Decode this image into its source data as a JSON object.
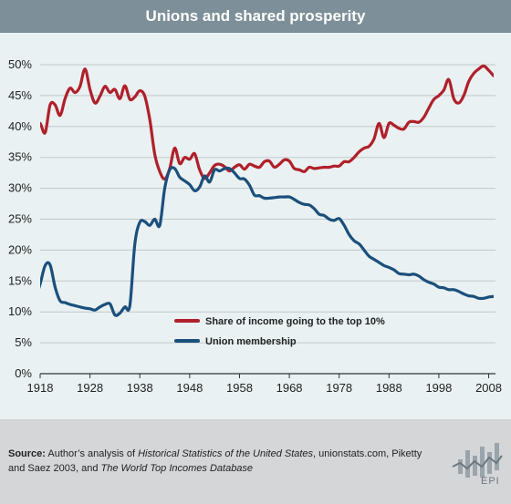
{
  "header": {
    "title": "Unions and shared prosperity"
  },
  "footer": {
    "source_label": "Source:",
    "source_parts": [
      "Author’s analysis of ",
      "Historical Statistics of the United States",
      ", unionstats.com, Piketty and Saez 2003, and ",
      "The World Top Incomes Database"
    ],
    "logo_text": "EPI"
  },
  "colors": {
    "income": "#b0202a",
    "union": "#1b4f7c",
    "background": "#e9f1f2",
    "header": "#7d8f99"
  },
  "chart_data": {
    "type": "line",
    "title": "Unions and shared prosperity",
    "xlabel": "",
    "ylabel": "",
    "xlim": [
      1918,
      2009
    ],
    "ylim": [
      0,
      50
    ],
    "xticks": [
      1918,
      1928,
      1938,
      1948,
      1958,
      1968,
      1978,
      1988,
      1998,
      2008
    ],
    "yticks": [
      0,
      5,
      10,
      15,
      20,
      25,
      30,
      35,
      40,
      45,
      50
    ],
    "ytick_labels": [
      "0%",
      "5%",
      "10%",
      "15%",
      "20%",
      "25%",
      "30%",
      "35%",
      "40%",
      "45%",
      "50%"
    ],
    "grid": "horizontal",
    "legend_position": "lower-center",
    "series": [
      {
        "name": "Share of income going to the top 10%",
        "color": "#b0202a",
        "x": [
          1917,
          1918,
          1919,
          1920,
          1921,
          1922,
          1923,
          1924,
          1925,
          1926,
          1927,
          1928,
          1929,
          1930,
          1931,
          1932,
          1933,
          1934,
          1935,
          1936,
          1937,
          1938,
          1939,
          1940,
          1941,
          1942,
          1943,
          1944,
          1945,
          1946,
          1947,
          1948,
          1949,
          1950,
          1951,
          1952,
          1953,
          1954,
          1955,
          1956,
          1957,
          1958,
          1959,
          1960,
          1961,
          1962,
          1963,
          1964,
          1965,
          1966,
          1967,
          1968,
          1969,
          1970,
          1971,
          1972,
          1973,
          1974,
          1975,
          1976,
          1977,
          1978,
          1979,
          1980,
          1981,
          1982,
          1983,
          1984,
          1985,
          1986,
          1987,
          1988,
          1989,
          1990,
          1991,
          1992,
          1993,
          1994,
          1995,
          1996,
          1997,
          1998,
          1999,
          2000,
          2001,
          2002,
          2003,
          2004,
          2005,
          2006,
          2007,
          2008,
          2009
        ],
        "values": [
          40.3,
          40.5,
          39.0,
          43.5,
          43.5,
          41.8,
          44.5,
          46.2,
          45.5,
          46.5,
          49.3,
          46.0,
          43.8,
          44.9,
          46.5,
          45.5,
          46.0,
          44.5,
          46.6,
          44.4,
          44.8,
          45.8,
          44.9,
          41.1,
          35.5,
          32.7,
          31.5,
          33.2,
          36.5,
          34.0,
          35.0,
          34.7,
          35.6,
          33.0,
          31.6,
          32.5,
          33.7,
          33.9,
          33.5,
          32.8,
          33.4,
          33.8,
          33.1,
          33.9,
          33.6,
          33.4,
          34.3,
          34.4,
          33.4,
          33.9,
          34.6,
          34.4,
          33.2,
          33.0,
          32.7,
          33.4,
          33.2,
          33.3,
          33.4,
          33.4,
          33.6,
          33.6,
          34.3,
          34.3,
          35.0,
          35.9,
          36.5,
          36.8,
          38.0,
          40.5,
          38.2,
          40.5,
          40.2,
          39.7,
          39.6,
          40.7,
          40.8,
          40.7,
          41.5,
          43.0,
          44.4,
          45.0,
          45.9,
          47.6,
          44.5,
          43.8,
          45.0,
          47.3,
          48.6,
          49.3,
          49.8,
          49.1,
          48.2
        ]
      },
      {
        "name": "Union membership",
        "color": "#1b4f7c",
        "x": [
          1917,
          1918,
          1919,
          1920,
          1921,
          1922,
          1923,
          1924,
          1925,
          1926,
          1927,
          1928,
          1929,
          1930,
          1931,
          1932,
          1933,
          1934,
          1935,
          1936,
          1937,
          1938,
          1939,
          1940,
          1941,
          1942,
          1943,
          1944,
          1945,
          1946,
          1947,
          1948,
          1949,
          1950,
          1951,
          1952,
          1953,
          1954,
          1955,
          1956,
          1957,
          1958,
          1959,
          1960,
          1961,
          1962,
          1963,
          1964,
          1965,
          1966,
          1967,
          1968,
          1969,
          1970,
          1971,
          1972,
          1973,
          1974,
          1975,
          1976,
          1977,
          1978,
          1979,
          1980,
          1981,
          1982,
          1983,
          1984,
          1985,
          1986,
          1987,
          1988,
          1989,
          1990,
          1991,
          1992,
          1993,
          1994,
          1995,
          1996,
          1997,
          1998,
          1999,
          2000,
          2001,
          2002,
          2003,
          2004,
          2005,
          2006,
          2007,
          2008,
          2009
        ],
        "values": [
          12.0,
          14.5,
          17.5,
          17.6,
          14.0,
          11.8,
          11.5,
          11.2,
          11.0,
          10.8,
          10.6,
          10.5,
          10.3,
          10.8,
          11.2,
          11.3,
          9.5,
          9.8,
          10.8,
          11.0,
          21.0,
          24.5,
          24.6,
          24.0,
          25.0,
          24.0,
          30.0,
          33.0,
          33.2,
          31.8,
          31.2,
          30.6,
          29.6,
          30.2,
          32.0,
          31.0,
          33.0,
          32.8,
          33.2,
          33.2,
          32.5,
          31.6,
          31.5,
          30.5,
          28.9,
          28.8,
          28.4,
          28.4,
          28.5,
          28.6,
          28.6,
          28.6,
          28.2,
          27.7,
          27.4,
          27.3,
          26.7,
          25.8,
          25.6,
          25.0,
          24.8,
          25.1,
          24.0,
          22.5,
          21.5,
          21.0,
          20.0,
          19.0,
          18.5,
          18.0,
          17.5,
          17.2,
          16.8,
          16.2,
          16.1,
          16.0,
          16.1,
          15.8,
          15.2,
          14.8,
          14.5,
          14.0,
          13.9,
          13.6,
          13.6,
          13.3,
          12.9,
          12.6,
          12.5,
          12.2,
          12.2,
          12.4,
          12.5
        ]
      }
    ]
  }
}
